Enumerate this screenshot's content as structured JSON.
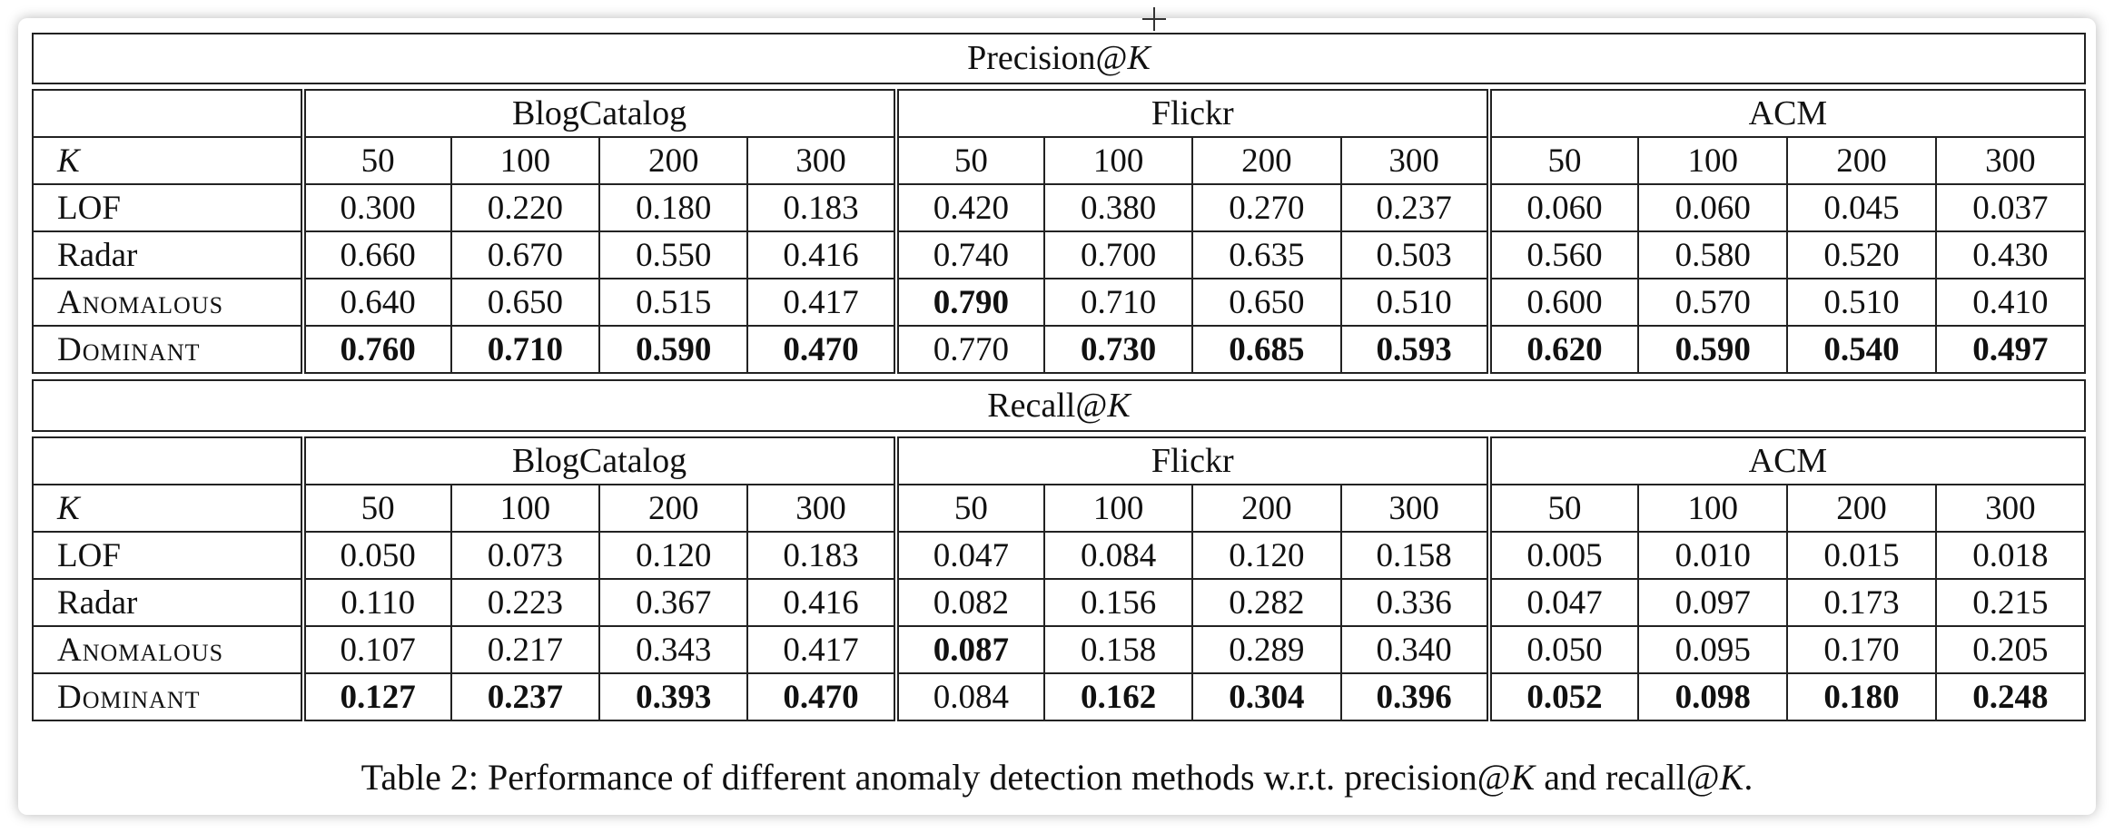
{
  "precision_table": {
    "title": "Precision@",
    "title_var": "K",
    "datasets": [
      "BlogCatalog",
      "Flickr",
      "ACM"
    ],
    "k_label": "K",
    "k_values": [
      "50",
      "100",
      "200",
      "300",
      "50",
      "100",
      "200",
      "300",
      "50",
      "100",
      "200",
      "300"
    ],
    "rows": [
      {
        "method": "LOF",
        "values": [
          "0.300",
          "0.220",
          "0.180",
          "0.183",
          "0.420",
          "0.380",
          "0.270",
          "0.237",
          "0.060",
          "0.060",
          "0.045",
          "0.037"
        ],
        "bold": []
      },
      {
        "method": "Radar",
        "values": [
          "0.660",
          "0.670",
          "0.550",
          "0.416",
          "0.740",
          "0.700",
          "0.635",
          "0.503",
          "0.560",
          "0.580",
          "0.520",
          "0.430"
        ],
        "bold": []
      },
      {
        "method": "Anomalous",
        "values": [
          "0.640",
          "0.650",
          "0.515",
          "0.417",
          "0.790",
          "0.710",
          "0.650",
          "0.510",
          "0.600",
          "0.570",
          "0.510",
          "0.410"
        ],
        "bold": [
          4
        ]
      },
      {
        "method": "Dominant",
        "values": [
          "0.760",
          "0.710",
          "0.590",
          "0.470",
          "0.770",
          "0.730",
          "0.685",
          "0.593",
          "0.620",
          "0.590",
          "0.540",
          "0.497"
        ],
        "bold": [
          0,
          1,
          2,
          3,
          5,
          6,
          7,
          8,
          9,
          10,
          11
        ]
      }
    ]
  },
  "recall_table": {
    "title": "Recall@",
    "title_var": "K",
    "datasets": [
      "BlogCatalog",
      "Flickr",
      "ACM"
    ],
    "k_label": "K",
    "k_values": [
      "50",
      "100",
      "200",
      "300",
      "50",
      "100",
      "200",
      "300",
      "50",
      "100",
      "200",
      "300"
    ],
    "rows": [
      {
        "method": "LOF",
        "values": [
          "0.050",
          "0.073",
          "0.120",
          "0.183",
          "0.047",
          "0.084",
          "0.120",
          "0.158",
          "0.005",
          "0.010",
          "0.015",
          "0.018"
        ],
        "bold": []
      },
      {
        "method": "Radar",
        "values": [
          "0.110",
          "0.223",
          "0.367",
          "0.416",
          "0.082",
          "0.156",
          "0.282",
          "0.336",
          "0.047",
          "0.097",
          "0.173",
          "0.215"
        ],
        "bold": []
      },
      {
        "method": "Anomalous",
        "values": [
          "0.107",
          "0.217",
          "0.343",
          "0.417",
          "0.087",
          "0.158",
          "0.289",
          "0.340",
          "0.050",
          "0.095",
          "0.170",
          "0.205"
        ],
        "bold": [
          4
        ]
      },
      {
        "method": "Dominant",
        "values": [
          "0.127",
          "0.237",
          "0.393",
          "0.470",
          "0.084",
          "0.162",
          "0.304",
          "0.396",
          "0.052",
          "0.098",
          "0.180",
          "0.248"
        ],
        "bold": [
          0,
          1,
          2,
          3,
          5,
          6,
          7,
          8,
          9,
          10,
          11
        ]
      }
    ]
  },
  "caption": {
    "text": "Table 2: Performance of different anomaly detection methods w.r.t. precision@",
    "var1": "K",
    "mid": " and recall@",
    "var2": "K",
    "end": "."
  }
}
